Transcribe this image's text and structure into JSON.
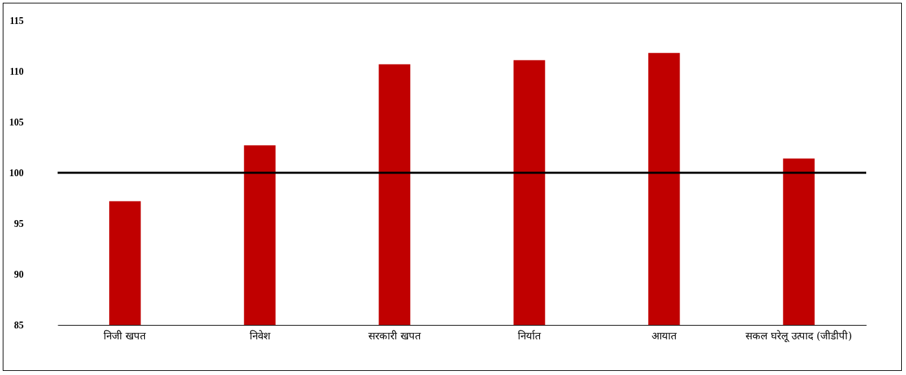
{
  "chart_data": {
    "type": "bar",
    "categories": [
      "निजी खपत",
      "निवेश",
      "सरकारी खपत",
      "निर्यात",
      "आयात",
      "सकल घरेलू उत्पाद (जीडीपी)"
    ],
    "values": [
      97.2,
      102.7,
      110.7,
      111.1,
      111.8,
      101.4
    ],
    "color": "#c00000",
    "ylim": [
      85,
      115
    ],
    "yticks": [
      85,
      90,
      95,
      100,
      105,
      110,
      115
    ],
    "ref_lines": [
      {
        "axis": "y",
        "value": 100,
        "color": "#000000"
      }
    ]
  }
}
